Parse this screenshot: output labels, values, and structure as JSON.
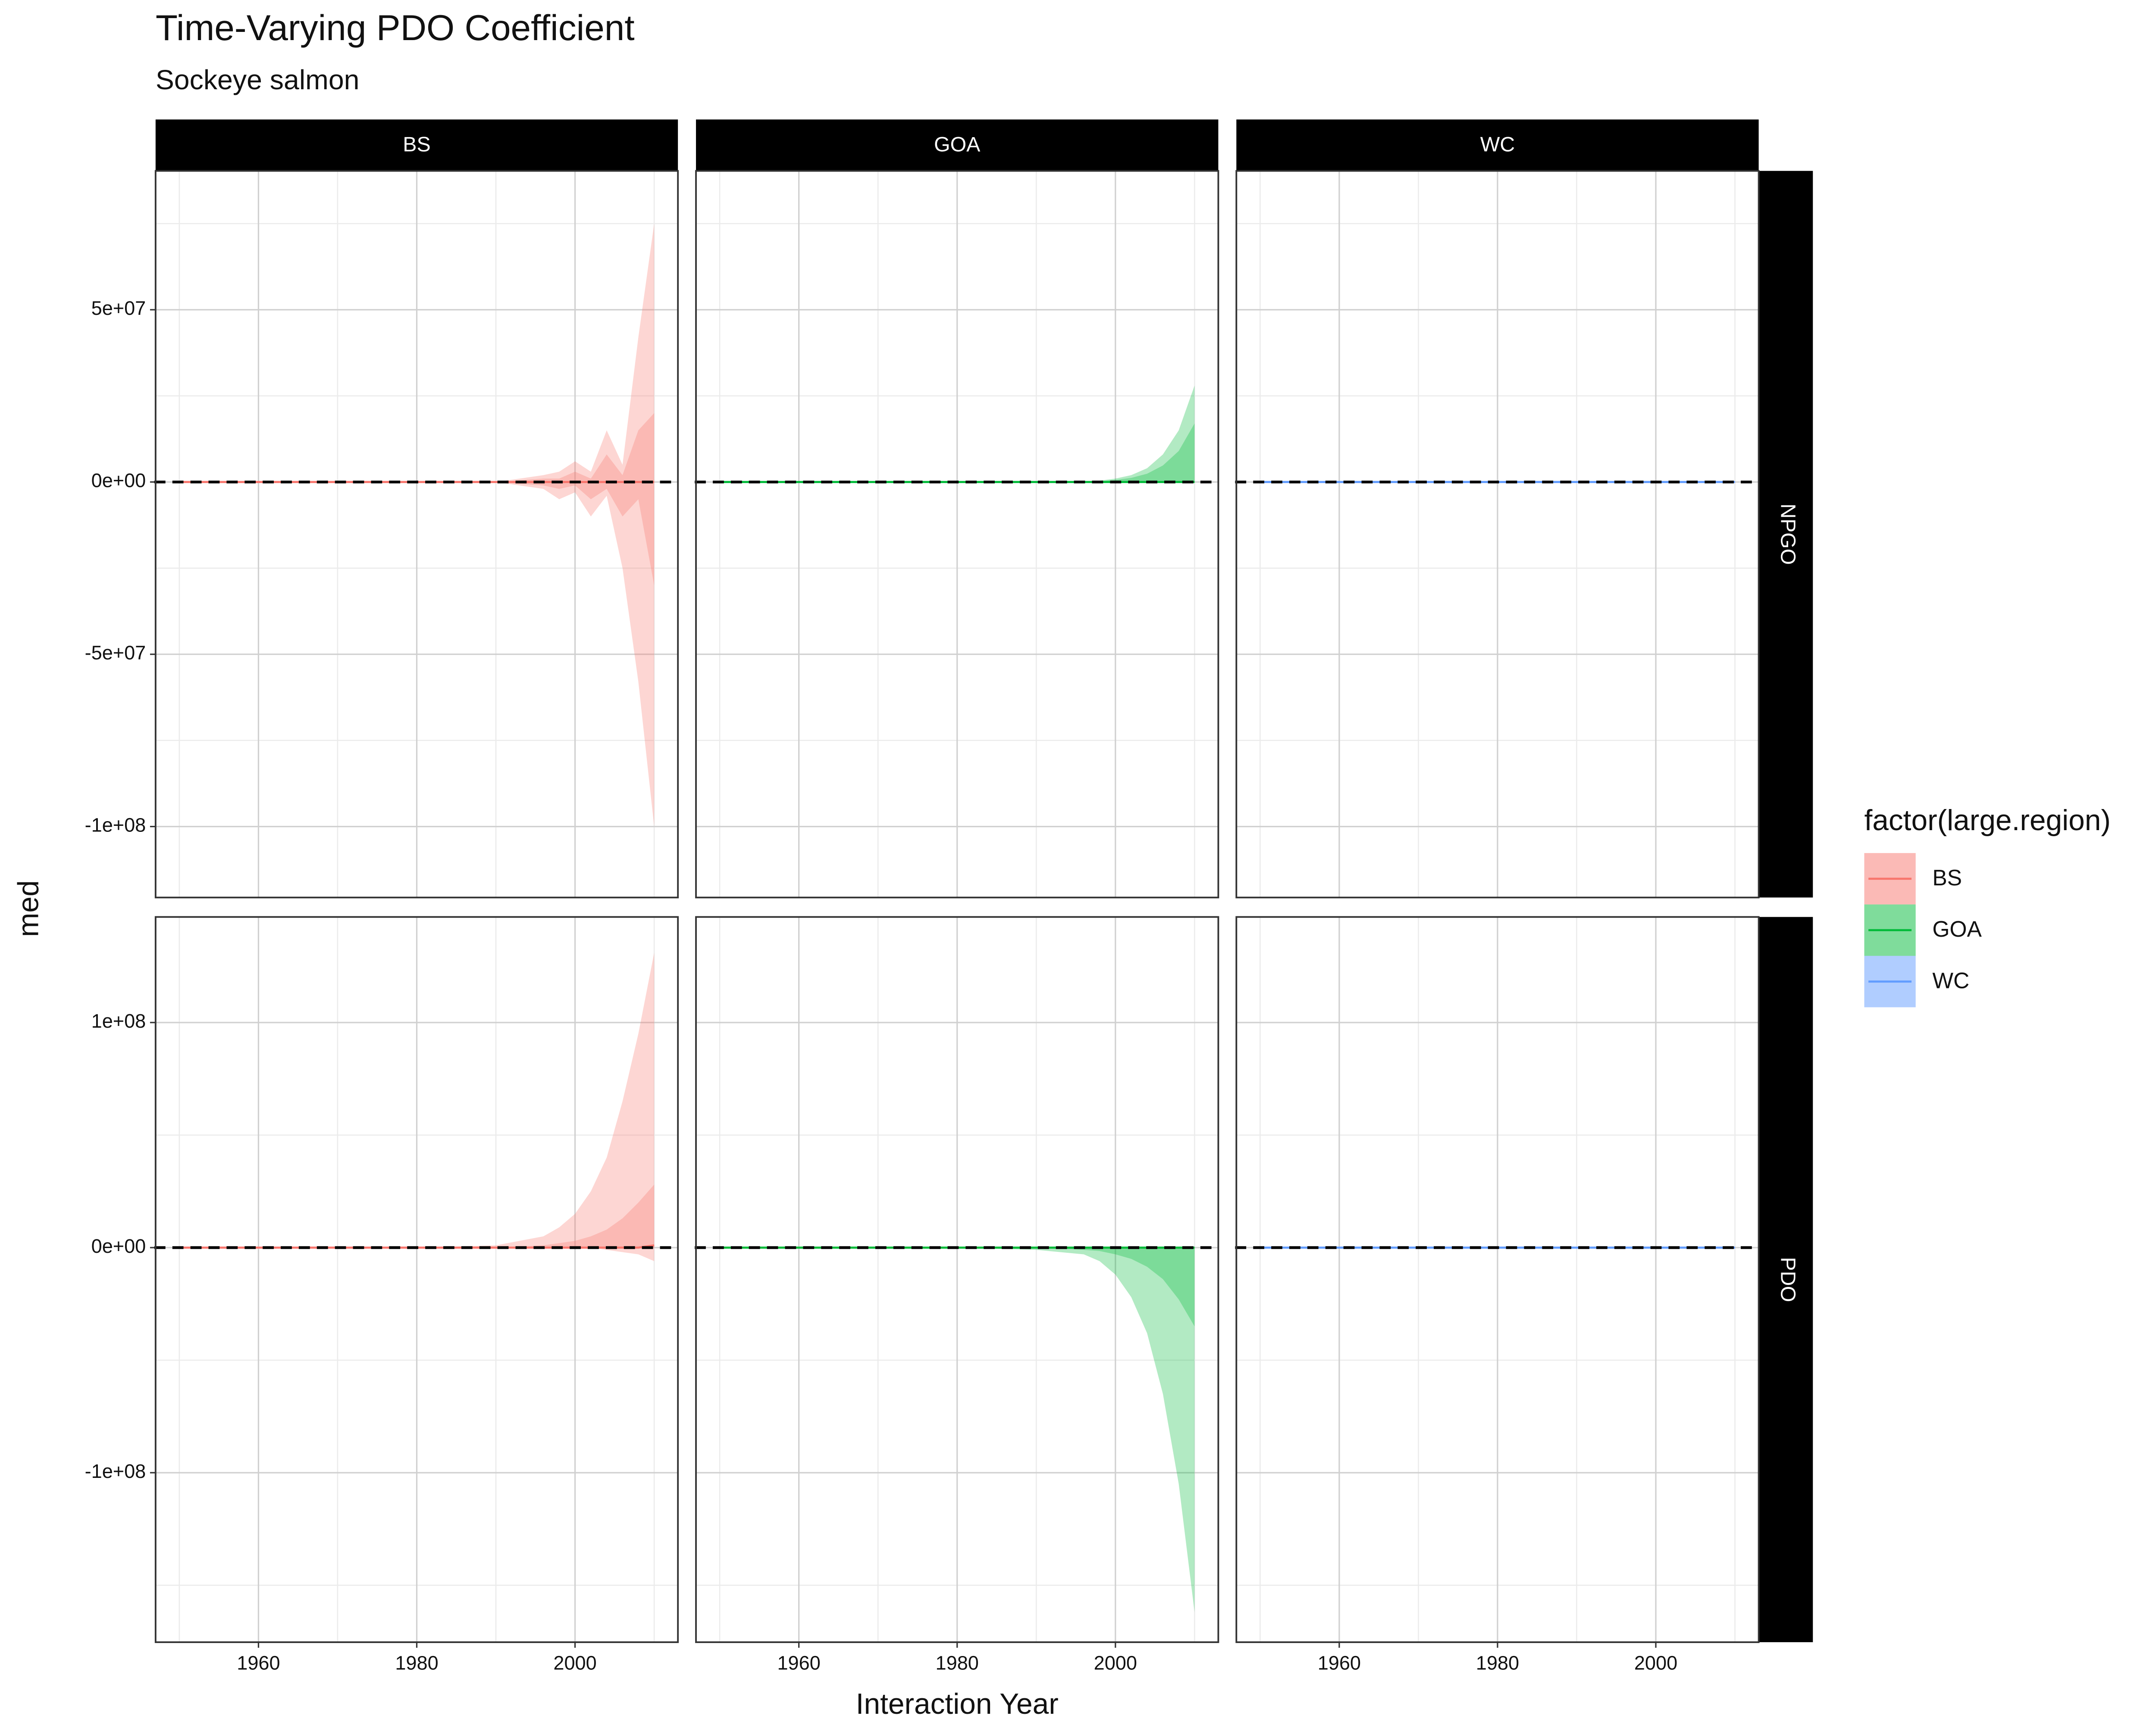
{
  "chart_data": {
    "type": "area",
    "title": "Time-Varying PDO Coefficient",
    "subtitle": "Sockeye salmon",
    "x_label": "Interaction Year",
    "y_label": "med",
    "legend_title": "factor(large.region)",
    "x": [
      1950,
      1960,
      1970,
      1980,
      1990,
      1996,
      1998,
      2000,
      2002,
      2004,
      2006,
      2008,
      2010
    ],
    "xlim": [
      1947,
      2013
    ],
    "xticks": [
      1960,
      1980,
      2000
    ],
    "xminor": [
      1950,
      1970,
      1990,
      2010
    ],
    "hline": 0,
    "series": [
      {
        "name": "BS",
        "color": "#F8766D"
      },
      {
        "name": "GOA",
        "color": "#00BA38"
      },
      {
        "name": "WC",
        "color": "#619CFF"
      }
    ],
    "rows": [
      {
        "name": "NPGO",
        "ylim": [
          -120600000,
          90300000
        ],
        "yticks": [
          {
            "value": -100000000,
            "label": "-1e+08"
          },
          {
            "value": -50000000,
            "label": "-5e+07"
          },
          {
            "value": 0,
            "label": "0e+00"
          },
          {
            "value": 50000000,
            "label": "5e+07"
          }
        ],
        "yminor": [
          -75000000,
          -25000000,
          25000000,
          75000000
        ],
        "panels": [
          {
            "med": [
              0,
              0,
              0,
              0,
              0,
              0,
              0,
              0,
              0,
              0,
              0,
              0,
              0
            ],
            "lo50": [
              0,
              0,
              0,
              0,
              0,
              -1000000,
              -2000000,
              -1000000,
              -5000000,
              -2000000,
              -10000000,
              -5000000,
              -30000000
            ],
            "hi50": [
              0,
              0,
              0,
              0,
              0,
              1000000,
              1000000,
              3000000,
              1000000,
              8000000,
              2000000,
              15000000,
              20000000
            ],
            "lo95": [
              0,
              0,
              0,
              0,
              0,
              -2000000,
              -5000000,
              -3000000,
              -10000000,
              -4000000,
              -25000000,
              -58000000,
              -100000000
            ],
            "hi95": [
              0,
              0,
              0,
              0,
              0,
              2000000,
              3000000,
              6000000,
              3000000,
              15000000,
              5000000,
              42000000,
              75000000
            ]
          },
          {
            "med": [
              0,
              0,
              0,
              0,
              0,
              0,
              0,
              0,
              0,
              0,
              0,
              0,
              0
            ],
            "lo50": [
              0,
              0,
              0,
              0,
              0,
              0,
              0,
              0,
              0,
              0,
              0,
              0,
              0
            ],
            "hi50": [
              0,
              0,
              0,
              0,
              0,
              100000,
              200000,
              600000,
              1200000,
              2400000,
              4800000,
              9000000,
              17000000
            ],
            "lo95": [
              0,
              0,
              0,
              0,
              0,
              0,
              0,
              0,
              0,
              0,
              0,
              0,
              0
            ],
            "hi95": [
              0,
              0,
              0,
              0,
              0,
              200000,
              400000,
              1000000,
              2000000,
              4000000,
              8000000,
              15000000,
              28000000
            ]
          },
          {
            "med": [
              0,
              0,
              0,
              0,
              0,
              0,
              0,
              0,
              0,
              0,
              0,
              0,
              0
            ],
            "lo50": [
              0,
              0,
              0,
              0,
              0,
              0,
              0,
              0,
              0,
              0,
              0,
              0,
              0
            ],
            "hi50": [
              0,
              0,
              0,
              0,
              0,
              0,
              0,
              0,
              0,
              0,
              0,
              0,
              0
            ],
            "lo95": [
              0,
              0,
              0,
              0,
              0,
              0,
              0,
              0,
              0,
              0,
              0,
              0,
              0
            ],
            "hi95": [
              0,
              0,
              0,
              0,
              0,
              0,
              0,
              0,
              0,
              0,
              0,
              0,
              0
            ]
          }
        ]
      },
      {
        "name": "PDO",
        "ylim": [
          -175300000,
          146900000
        ],
        "yticks": [
          {
            "value": -100000000,
            "label": "-1e+08"
          },
          {
            "value": 0,
            "label": "0e+00"
          },
          {
            "value": 100000000,
            "label": "1e+08"
          }
        ],
        "yminor": [
          -150000000,
          -50000000,
          50000000
        ],
        "panels": [
          {
            "med": [
              0,
              0,
              0,
              0,
              0,
              0,
              0,
              0,
              0,
              0,
              0,
              0,
              1000000
            ],
            "lo50": [
              0,
              0,
              0,
              0,
              0,
              0,
              0,
              0,
              0,
              0,
              0,
              0,
              0
            ],
            "hi50": [
              0,
              0,
              0,
              0,
              0,
              1000000,
              2000000,
              3000000,
              5000000,
              8000000,
              13000000,
              20000000,
              28000000
            ],
            "lo95": [
              0,
              0,
              0,
              0,
              0,
              0,
              0,
              0,
              0,
              -1000000,
              -2000000,
              -3000000,
              -6000000
            ],
            "hi95": [
              0,
              0,
              0,
              0,
              1000000,
              5000000,
              9000000,
              15000000,
              25000000,
              40000000,
              65000000,
              95000000,
              131000000
            ]
          },
          {
            "med": [
              0,
              0,
              0,
              0,
              0,
              0,
              0,
              0,
              0,
              0,
              0,
              0,
              0
            ],
            "lo50": [
              0,
              0,
              0,
              0,
              0,
              -1000000,
              -1500000,
              -3000000,
              -5000000,
              -8500000,
              -14000000,
              -23000000,
              -35000000
            ],
            "hi50": [
              0,
              0,
              0,
              0,
              0,
              0,
              0,
              0,
              0,
              0,
              0,
              0,
              0
            ],
            "lo95": [
              0,
              0,
              0,
              0,
              -1000000,
              -3000000,
              -6000000,
              -12000000,
              -22000000,
              -38000000,
              -65000000,
              -105000000,
              -162000000
            ],
            "hi95": [
              0,
              0,
              0,
              0,
              0,
              0,
              0,
              0,
              0,
              0,
              0,
              0,
              0
            ]
          },
          {
            "med": [
              0,
              0,
              0,
              0,
              0,
              0,
              0,
              0,
              0,
              0,
              0,
              0,
              0
            ],
            "lo50": [
              0,
              0,
              0,
              0,
              0,
              0,
              0,
              0,
              0,
              0,
              0,
              0,
              0
            ],
            "hi50": [
              0,
              0,
              0,
              0,
              0,
              0,
              0,
              0,
              0,
              0,
              0,
              0,
              0
            ],
            "lo95": [
              0,
              0,
              0,
              0,
              0,
              0,
              0,
              0,
              0,
              0,
              0,
              0,
              0
            ],
            "hi95": [
              0,
              0,
              0,
              0,
              0,
              0,
              0,
              0,
              0,
              0,
              0,
              0,
              0
            ]
          }
        ]
      }
    ]
  }
}
